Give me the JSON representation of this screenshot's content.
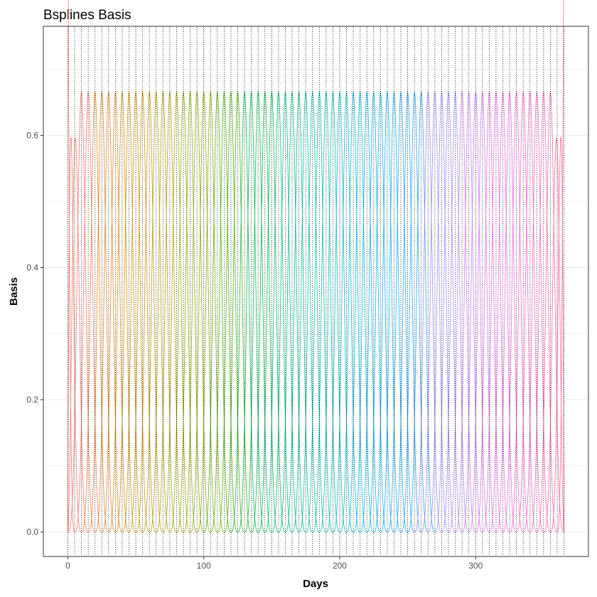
{
  "chart_data": {
    "type": "line",
    "title": "Bsplines Basis",
    "xlabel": "Days",
    "ylabel": "Basis",
    "xlim": [
      -18,
      383
    ],
    "ylim": [
      -0.037,
      0.765
    ],
    "x_ticks": [
      0,
      100,
      200,
      300
    ],
    "y_ticks": [
      0.0,
      0.2,
      0.4,
      0.6
    ],
    "x_tick_labels": [
      "0",
      "100",
      "200",
      "300"
    ],
    "y_tick_labels": [
      "0.0",
      "0.2",
      "0.4",
      "0.6"
    ],
    "grid": true,
    "legend": "none",
    "basis": {
      "degree": 3,
      "range": [
        0,
        365
      ],
      "knot_spacing": 5,
      "n_basis": 76
    },
    "knot_lines": {
      "style": "dotted",
      "color": "#000000",
      "spacing": 5
    },
    "series_colors": [
      "#F8766D",
      "#E7851E",
      "#D09400",
      "#B2A100",
      "#89AC00",
      "#45B500",
      "#00BC51",
      "#00C087",
      "#00C0B2",
      "#00BCD6",
      "#00B3F2",
      "#29A3FF",
      "#9C8DFF",
      "#D277FF",
      "#F166E8",
      "#FF61C7",
      "#FF689E"
    ]
  }
}
